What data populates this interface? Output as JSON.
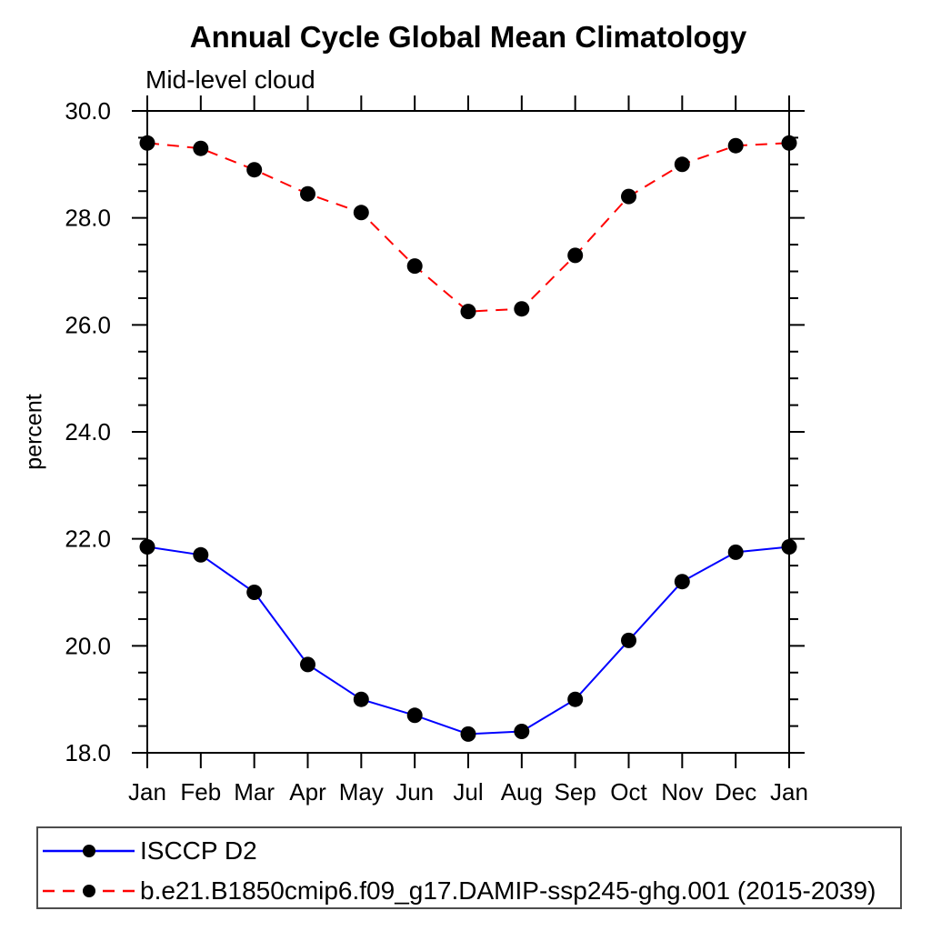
{
  "chart_data": {
    "type": "line",
    "title": "Annual Cycle Global Mean Climatology",
    "subtitle": "Mid-level cloud",
    "xlabel": "",
    "ylabel": "percent",
    "categories": [
      "Jan",
      "Feb",
      "Mar",
      "Apr",
      "May",
      "Jun",
      "Jul",
      "Aug",
      "Sep",
      "Oct",
      "Nov",
      "Dec",
      "Jan"
    ],
    "ylim": [
      18.0,
      30.0
    ],
    "ytick_major": [
      18.0,
      20.0,
      22.0,
      24.0,
      26.0,
      28.0,
      30.0
    ],
    "ytick_labels": [
      "18.0",
      "20.0",
      "22.0",
      "24.0",
      "26.0",
      "28.0",
      "30.0"
    ],
    "ytick_minor_step": 0.5,
    "grid": false,
    "legend_position": "bottom-left-box",
    "marker": "filled-circle",
    "marker_color": "#000000",
    "axis_color": "#000000",
    "series": [
      {
        "name": "ISCCP D2",
        "color": "#0000ff",
        "line_style": "solid",
        "values": [
          21.85,
          21.7,
          21.0,
          19.65,
          19.0,
          18.7,
          18.35,
          18.4,
          19.0,
          20.1,
          21.2,
          21.75,
          21.85
        ]
      },
      {
        "name": "b.e21.B1850cmip6.f09_g17.DAMIP-ssp245-ghg.001 (2015-2039)",
        "color": "#ff0000",
        "line_style": "dashed",
        "values": [
          29.4,
          29.3,
          28.9,
          28.45,
          28.1,
          27.1,
          26.25,
          26.3,
          27.3,
          28.4,
          29.0,
          29.35,
          29.4
        ]
      }
    ]
  }
}
